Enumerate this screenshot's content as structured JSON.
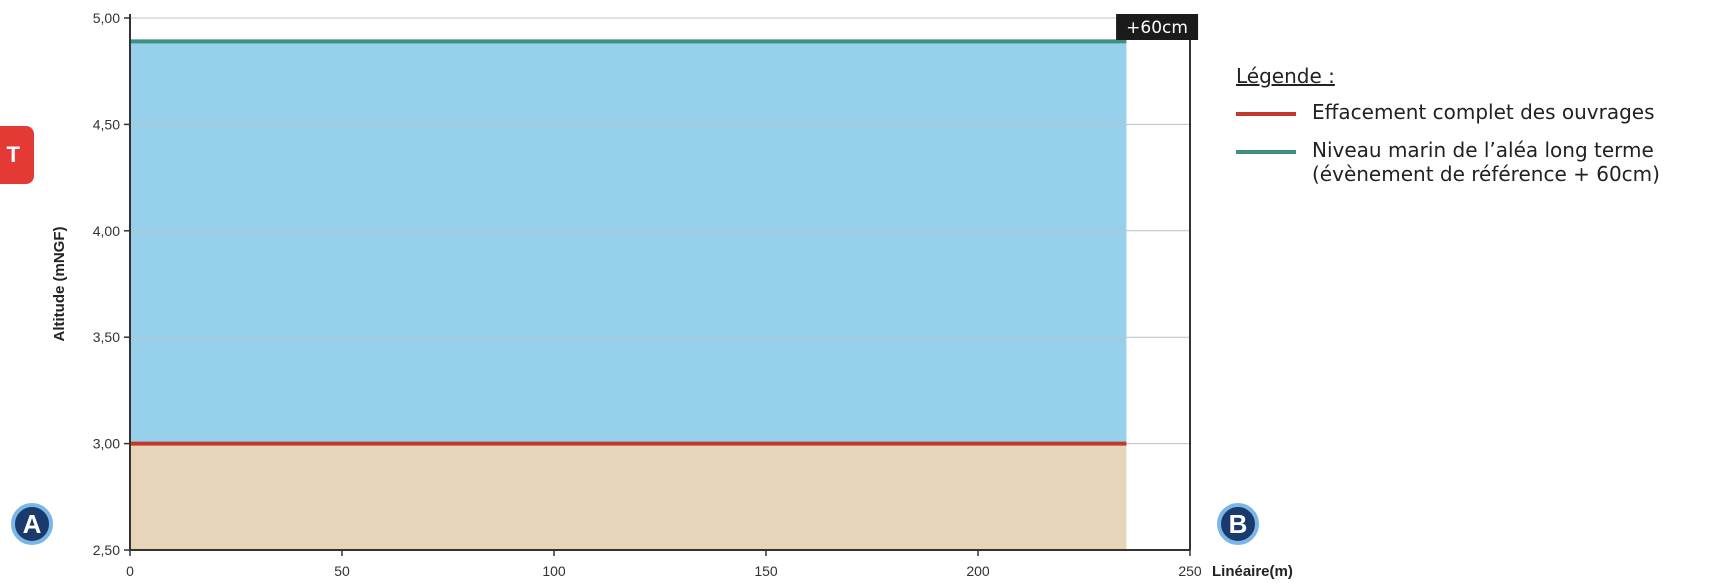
{
  "side_tab": {
    "label": "T"
  },
  "markers": {
    "a": "A",
    "b": "B"
  },
  "legend": {
    "title": "Légende :",
    "items": [
      {
        "label": "Effacement complet des ouvrages",
        "color": "#c0392b"
      },
      {
        "label": "Niveau marin de l’aléa long terme\n(évènement de référence + 60cm)",
        "color": "#3f8f80"
      }
    ]
  },
  "chart_data": {
    "type": "area",
    "ylabel": "Altitude (mNGF)",
    "xlabel": "Linéaire(m)",
    "xlim": [
      0,
      250
    ],
    "ylim": [
      2.5,
      5.0
    ],
    "x_ticks": [
      0,
      50,
      100,
      150,
      200,
      250
    ],
    "y_ticks": [
      2.5,
      3.0,
      3.5,
      4.0,
      4.5,
      5.0
    ],
    "x_tick_labels": [
      "0",
      "50",
      "100",
      "150",
      "200",
      "250"
    ],
    "y_tick_labels": [
      "2,50",
      "3,00",
      "3,50",
      "4,00",
      "4,50",
      "5,00"
    ],
    "grid": "horizontal",
    "series": [
      {
        "name": "Effacement complet des ouvrages",
        "x": [
          0,
          235
        ],
        "y": [
          3.0,
          3.0
        ],
        "color": "#c0392b",
        "fill": "#e6d5b8"
      },
      {
        "name": "Niveau marin de l’aléa long terme (évènement de référence + 60cm)",
        "x": [
          0,
          235
        ],
        "y": [
          4.89,
          4.89
        ],
        "color": "#3f8f80",
        "fill": "#97d0ea"
      }
    ],
    "annotations": [
      {
        "text": "+60cm",
        "x": 242,
        "y": 5.0
      }
    ]
  }
}
